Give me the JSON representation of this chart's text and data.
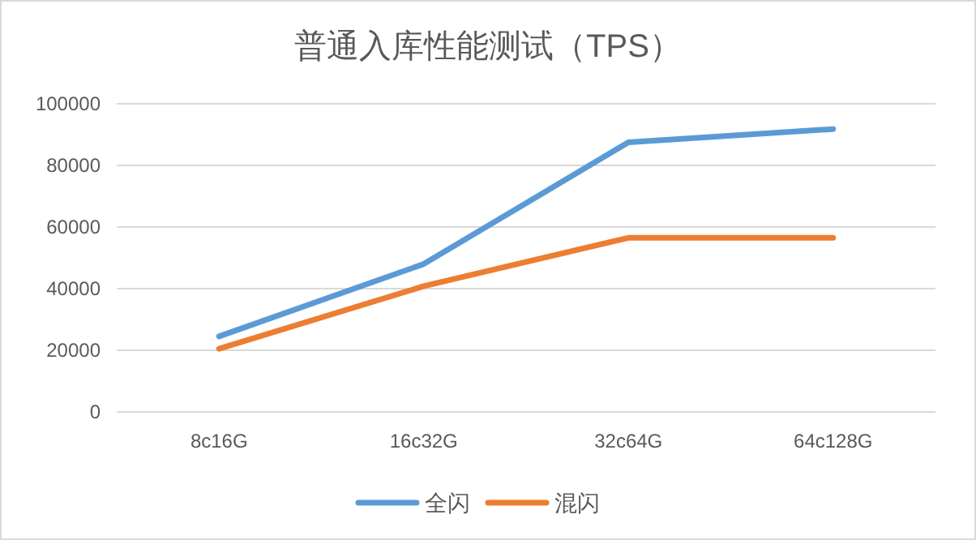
{
  "chart_data": {
    "type": "line",
    "title": "普通入库性能测试（TPS）",
    "categories": [
      "8c16G",
      "16c32G",
      "32c64G",
      "64c128G"
    ],
    "series": [
      {
        "name": "全闪",
        "color": "#5b9bd5",
        "values": [
          24500,
          48000,
          87500,
          91800
        ]
      },
      {
        "name": "混闪",
        "color": "#ed7d31",
        "values": [
          20500,
          40800,
          56500,
          56500
        ]
      }
    ],
    "ylim": [
      0,
      100000
    ],
    "yticks": [
      0,
      20000,
      40000,
      60000,
      80000,
      100000
    ],
    "grid": "y",
    "legend": "bottom",
    "marker": "none",
    "line_style": "solid"
  }
}
